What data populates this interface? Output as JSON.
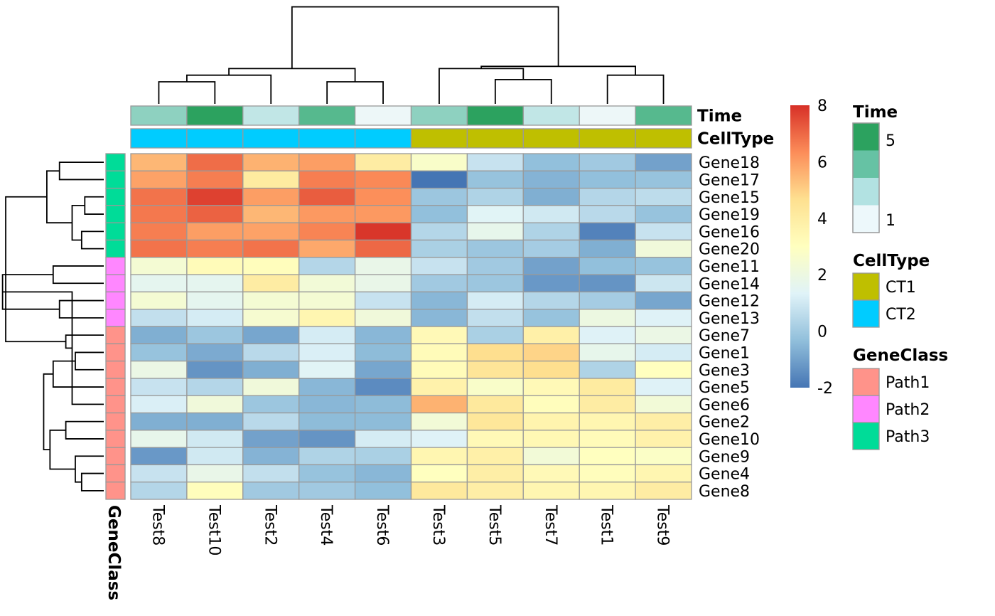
{
  "chart_data": {
    "type": "heatmap",
    "columns": [
      "Test8",
      "Test10",
      "Test2",
      "Test4",
      "Test6",
      "Test3",
      "Test5",
      "Test7",
      "Test1",
      "Test9"
    ],
    "rows": [
      "Gene18",
      "Gene17",
      "Gene15",
      "Gene19",
      "Gene16",
      "Gene20",
      "Gene11",
      "Gene14",
      "Gene12",
      "Gene13",
      "Gene7",
      "Gene1",
      "Gene3",
      "Gene5",
      "Gene6",
      "Gene2",
      "Gene10",
      "Gene9",
      "Gene4",
      "Gene8"
    ],
    "values": [
      [
        5.5,
        6.9,
        5.6,
        6.0,
        4.0,
        2.7,
        0.8,
        -0.3,
        0.0,
        -1.0
      ],
      [
        5.9,
        6.6,
        4.1,
        6.6,
        6.4,
        -2.0,
        -0.2,
        -0.6,
        -0.3,
        -0.2
      ],
      [
        6.8,
        7.7,
        6.0,
        7.2,
        6.3,
        -0.1,
        0.3,
        -0.7,
        0.4,
        0.6
      ],
      [
        6.7,
        7.1,
        5.5,
        6.1,
        6.1,
        -0.3,
        1.4,
        1.0,
        0.5,
        -0.2
      ],
      [
        6.6,
        6.0,
        5.9,
        6.5,
        7.9,
        0.4,
        1.7,
        0.3,
        -1.7,
        0.8
      ],
      [
        6.8,
        6.6,
        6.8,
        5.8,
        7.0,
        0.2,
        -0.1,
        0.1,
        -0.7,
        2.2
      ],
      [
        2.4,
        3.2,
        3.1,
        0.4,
        1.8,
        0.8,
        0.0,
        -1.0,
        -0.3,
        -0.2
      ],
      [
        1.6,
        1.6,
        4.0,
        2.3,
        1.8,
        0.0,
        -0.1,
        -1.2,
        -1.3,
        0.9
      ],
      [
        2.4,
        1.6,
        2.4,
        2.4,
        0.8,
        -0.5,
        1.1,
        0.4,
        0.1,
        -0.9
      ],
      [
        0.7,
        1.1,
        2.5,
        3.5,
        2.2,
        -0.5,
        0.7,
        -0.2,
        2.0,
        1.3
      ],
      [
        -0.7,
        -0.1,
        -0.9,
        1.1,
        -0.5,
        3.3,
        0.2,
        3.8,
        1.3,
        1.9
      ],
      [
        -0.2,
        -0.8,
        0.5,
        1.2,
        -0.4,
        3.2,
        4.7,
        4.9,
        1.7,
        1.1
      ],
      [
        1.9,
        -1.3,
        -0.7,
        1.4,
        -0.9,
        3.2,
        4.4,
        4.7,
        0.3,
        3.0
      ],
      [
        0.8,
        0.4,
        2.2,
        -0.5,
        -1.5,
        3.7,
        2.7,
        3.3,
        4.1,
        1.3
      ],
      [
        1.2,
        2.2,
        -0.1,
        -0.5,
        -0.4,
        5.6,
        4.2,
        3.1,
        4.0,
        2.3
      ],
      [
        -0.7,
        -0.7,
        0.5,
        -0.4,
        -0.4,
        2.3,
        4.3,
        3.6,
        3.5,
        3.9
      ],
      [
        1.7,
        1.0,
        -1.0,
        -1.3,
        1.1,
        1.3,
        3.3,
        3.4,
        3.2,
        3.7
      ],
      [
        -1.2,
        1.0,
        -0.6,
        0.3,
        0.2,
        3.5,
        3.8,
        2.3,
        3.0,
        2.8
      ],
      [
        0.8,
        1.8,
        0.7,
        -0.2,
        -0.5,
        3.0,
        3.9,
        3.3,
        3.1,
        3.5
      ],
      [
        0.4,
        3.1,
        0.0,
        0.0,
        -0.3,
        4.2,
        3.9,
        3.5,
        3.5,
        4.0
      ]
    ],
    "color_scale": {
      "domain": [
        -2,
        8
      ],
      "ticks": [
        "-2",
        "0",
        "2",
        "4",
        "6",
        "8"
      ],
      "stops": [
        {
          "value": -2.0,
          "color": "#4575b4"
        },
        {
          "value": -0.33,
          "color": "#91bfdb"
        },
        {
          "value": 1.33,
          "color": "#e0f3f8"
        },
        {
          "value": 3.0,
          "color": "#ffffbf"
        },
        {
          "value": 4.67,
          "color": "#fee090"
        },
        {
          "value": 6.33,
          "color": "#fc8d59"
        },
        {
          "value": 8.0,
          "color": "#d73027"
        }
      ]
    },
    "cell_border_color": "#999999",
    "column_annotations": [
      {
        "title": "Time",
        "values": [
          2,
          5,
          3,
          4,
          1,
          2,
          5,
          3,
          1,
          4
        ],
        "colors": {
          "1": "#edf7f8",
          "2": "#8ed1c0",
          "3": "#c1e6e6",
          "4": "#56b98e",
          "5": "#2ca25f"
        }
      },
      {
        "title": "CellType",
        "values": [
          "CT2",
          "CT2",
          "CT2",
          "CT2",
          "CT2",
          "CT1",
          "CT1",
          "CT1",
          "CT1",
          "CT1"
        ],
        "colors": {
          "CT1": "#bfbf00",
          "CT2": "#00ccff"
        }
      }
    ],
    "row_annotation": {
      "title": "GeneClass",
      "values": [
        "Path3",
        "Path3",
        "Path3",
        "Path3",
        "Path3",
        "Path3",
        "Path2",
        "Path2",
        "Path2",
        "Path2",
        "Path1",
        "Path1",
        "Path1",
        "Path1",
        "Path1",
        "Path1",
        "Path1",
        "Path1",
        "Path1",
        "Path1"
      ],
      "colors": {
        "Path1": "#ff938a",
        "Path2": "#ff87ff",
        "Path3": "#00dc98"
      }
    },
    "legends": {
      "time": {
        "title": "Time",
        "swatches": [
          "#2ca25f",
          "#66c2a4",
          "#b2e2e2",
          "#edf8fb"
        ],
        "labels": [
          "5",
          "1"
        ]
      },
      "celltype": {
        "title": "CellType",
        "items": [
          {
            "label": "CT1",
            "color": "#bfbf00"
          },
          {
            "label": "CT2",
            "color": "#00ccff"
          }
        ]
      },
      "geneclass": {
        "title": "GeneClass",
        "items": [
          {
            "label": "Path1",
            "color": "#ff938a"
          },
          {
            "label": "Path2",
            "color": "#ff87ff"
          },
          {
            "label": "Path3",
            "color": "#00dc98"
          }
        ]
      }
    },
    "column_dendrogram": [
      [
        0,
        1,
        1.0
      ],
      [
        3,
        4,
        1.0
      ],
      [
        2,
        10,
        1.3
      ],
      [
        8,
        9,
        1.3
      ],
      [
        6,
        7,
        1.1
      ],
      [
        5,
        14,
        1.6
      ],
      [
        11,
        12,
        1.6
      ],
      [
        13,
        15,
        1.7
      ],
      [
        16,
        17,
        4.4
      ]
    ],
    "row_dendrogram": [
      [
        0,
        1,
        0.7
      ],
      [
        2,
        3,
        0.3
      ],
      [
        4,
        5,
        0.35
      ],
      [
        21,
        22,
        0.5
      ],
      [
        20,
        23,
        0.9
      ],
      [
        6,
        7,
        0.8
      ],
      [
        8,
        9,
        0.7
      ],
      [
        25,
        26,
        1.6
      ],
      [
        11,
        12,
        0.45
      ],
      [
        28,
        13,
        0.8
      ],
      [
        27,
        14,
        0.5
      ],
      [
        10,
        30,
        0.6
      ],
      [
        15,
        16,
        0.6
      ],
      [
        18,
        19,
        0.35
      ],
      [
        33,
        17,
        0.45
      ],
      [
        32,
        34,
        0.85
      ],
      [
        29,
        35,
        0.95
      ],
      [
        24,
        31,
        1.55
      ]
    ]
  }
}
